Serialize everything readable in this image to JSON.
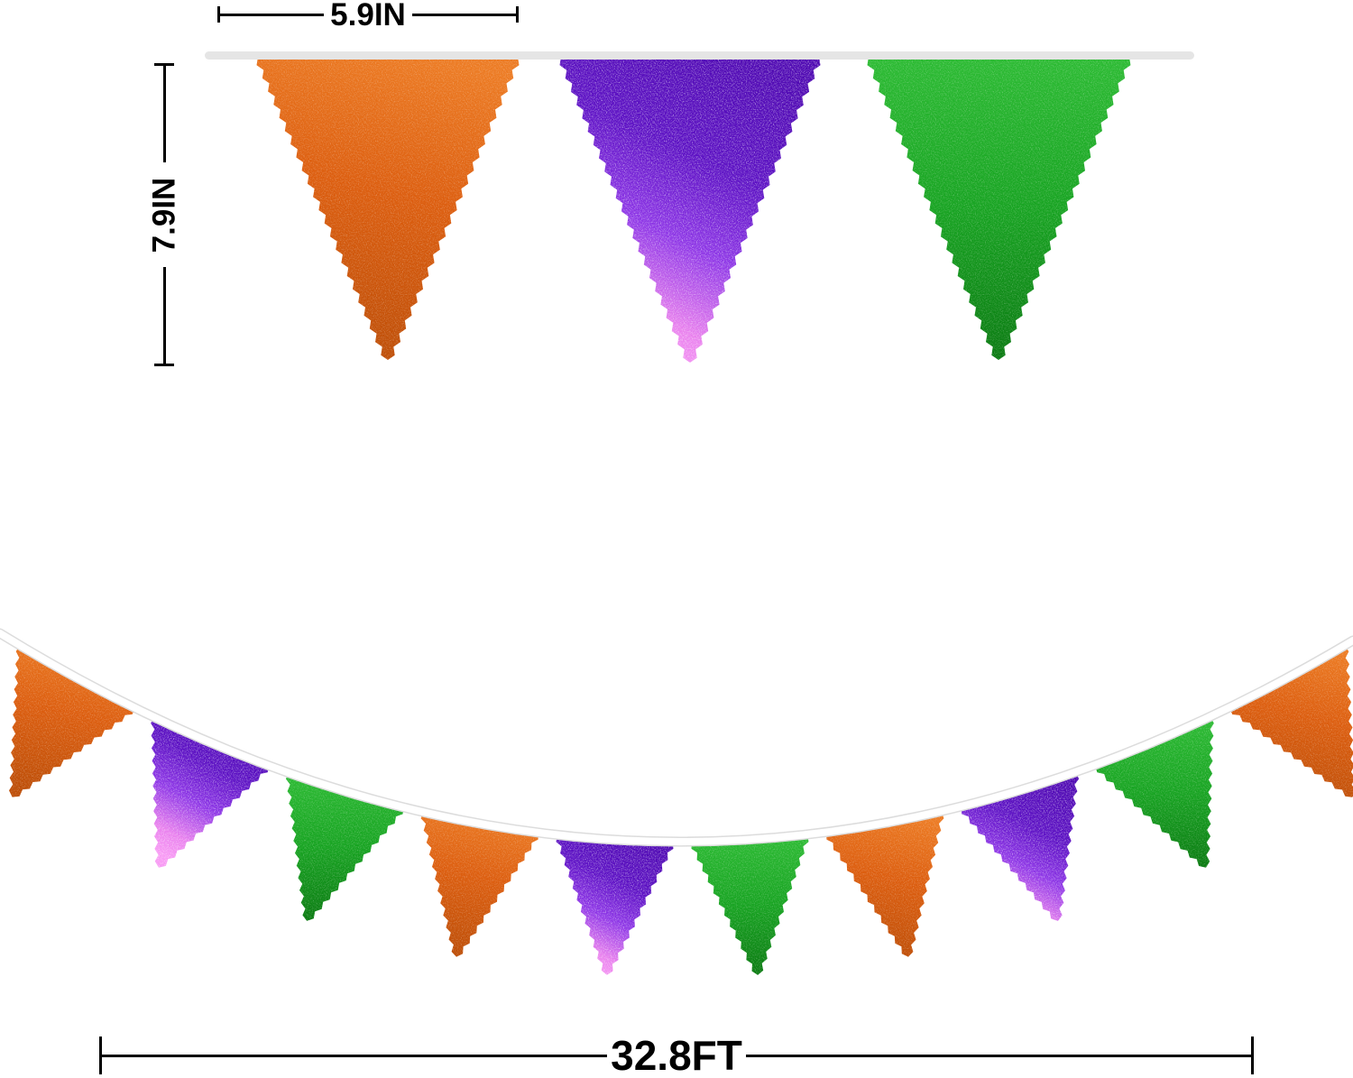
{
  "page": {
    "background": "#ffffff"
  },
  "dimensions": {
    "flag_width_label": "5.9IN",
    "flag_height_label": "7.9IN",
    "banner_length_label": "32.8FT",
    "line_color": "#000000"
  },
  "banner": {
    "string_color_top": "#e5e5e5",
    "string_color_bottom": "#ffffff",
    "string_edge_color": "#dcdcdc",
    "flag_colors": {
      "orange": {
        "light": "#ec7a22",
        "base": "#dc5d0e",
        "dark": "#bd4d06"
      },
      "purple": {
        "dark": "#4e07b2",
        "mid": "#5c10c4",
        "violet": "#8d35e6",
        "pink_light": "#e981ee",
        "pink": "#f899f4"
      },
      "green": {
        "light": "#2cbb33",
        "base": "#17a321",
        "dark": "#0a7a11"
      }
    },
    "top_row_flags": [
      "orange",
      "purple",
      "green"
    ],
    "bottom_row_flags": [
      "orange",
      "purple",
      "green",
      "orange",
      "purple",
      "green",
      "orange",
      "purple",
      "green",
      "orange"
    ]
  }
}
